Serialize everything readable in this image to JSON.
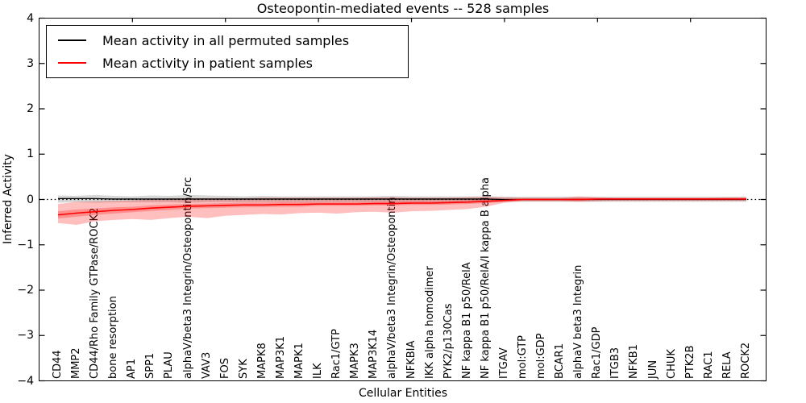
{
  "figure": {
    "background": "#ffffff",
    "frame_color": "#000000"
  },
  "chart_data": {
    "type": "line",
    "title": "Osteopontin-mediated events -- 528 samples",
    "xlabel": "Cellular Entities",
    "ylabel": "Inferred Activity",
    "ylim": [
      -4,
      4
    ],
    "grid": false,
    "zero_line": {
      "value": 0,
      "style": "dotted",
      "color": "#000000"
    },
    "yticks": {
      "values": [
        4,
        3,
        2,
        1,
        0,
        -1,
        -2,
        -3,
        -4
      ],
      "labels": [
        "4",
        "3",
        "2",
        "1",
        "0",
        "−1",
        "−2",
        "−3",
        "−4"
      ]
    },
    "categories": [
      "CD44",
      "MMP2",
      "CD44/Rho Family GTPase/ROCK2",
      "bone resorption",
      "AP1",
      "SPP1",
      "PLAU",
      "alphaV/beta3 Integrin/Osteopontin/Src",
      "VAV3",
      "FOS",
      "SYK",
      "MAPK8",
      "MAP3K1",
      "MAPK1",
      "ILK",
      "Rac1/GTP",
      "MAPK3",
      "MAP3K14",
      "alphaV/beta3 Integrin/Osteopontin",
      "NFKBIA",
      "IKK alpha homodimer",
      "PYK2/p130Cas",
      "NF kappa B1 p50/RelA",
      "NF kappa B1 p50/RelA/I kappa B alpha",
      "ITGAV",
      "mol:GTP",
      "mol:GDP",
      "BCAR1",
      "alphaV beta3 Integrin",
      "Rac1/GDP",
      "ITGB3",
      "NFKB1",
      "JUN",
      "CHUK",
      "PTK2B",
      "RAC1",
      "RELA",
      "ROCK2"
    ],
    "series": [
      {
        "name": "Mean activity in all permuted samples",
        "color": "#000000",
        "line_width": 1.3,
        "values": [
          0.02,
          0.02,
          0.02,
          0.01,
          0.01,
          0.01,
          0.01,
          0.01,
          0.01,
          0.01,
          0.01,
          0.01,
          0.01,
          0.01,
          0.01,
          0.01,
          0.01,
          0.01,
          0.01,
          0.01,
          0.01,
          0.01,
          0.01,
          0.01,
          0,
          0,
          0,
          0,
          0,
          0,
          0,
          0,
          0,
          0,
          0,
          0,
          0,
          0
        ],
        "band": {
          "fill": "rgba(0,0,0,0.16)",
          "upper": [
            0.09,
            0.08,
            0.1,
            0.08,
            0.07,
            0.09,
            0.08,
            0.1,
            0.09,
            0.08,
            0.07,
            0.08,
            0.07,
            0.07,
            0.07,
            0.07,
            0.07,
            0.07,
            0.08,
            0.07,
            0.07,
            0.07,
            0.07,
            0.07,
            0.06,
            0.06,
            0.06,
            0.06,
            0.06,
            0.06,
            0.06,
            0.06,
            0.06,
            0.06,
            0.06,
            0.06,
            0.06,
            0.06
          ],
          "lower": [
            -0.07,
            -0.06,
            -0.07,
            -0.06,
            -0.06,
            -0.06,
            -0.06,
            -0.07,
            -0.06,
            -0.06,
            -0.06,
            -0.06,
            -0.06,
            -0.06,
            -0.06,
            -0.06,
            -0.06,
            -0.06,
            -0.06,
            -0.06,
            -0.06,
            -0.06,
            -0.06,
            -0.06,
            -0.05,
            -0.05,
            -0.05,
            -0.05,
            -0.05,
            -0.05,
            -0.05,
            -0.05,
            -0.05,
            -0.05,
            -0.05,
            -0.05,
            -0.05,
            -0.05
          ]
        }
      },
      {
        "name": "Mean activity in patient samples",
        "color": "#ff0000",
        "line_width": 1.6,
        "values": [
          -0.34,
          -0.3,
          -0.27,
          -0.24,
          -0.22,
          -0.19,
          -0.17,
          -0.15,
          -0.14,
          -0.13,
          -0.12,
          -0.12,
          -0.11,
          -0.11,
          -0.1,
          -0.1,
          -0.1,
          -0.09,
          -0.09,
          -0.08,
          -0.08,
          -0.07,
          -0.06,
          -0.04,
          -0.02,
          0.0,
          0.0,
          0.0,
          0.0,
          0.01,
          0.01,
          0.01,
          0.01,
          0.01,
          0.01,
          0.01,
          0.01,
          0.01
        ],
        "band_outer": {
          "fill": "rgba(255,0,0,0.25)",
          "upper": [
            -0.1,
            -0.05,
            -0.04,
            -0.03,
            -0.02,
            0.0,
            0.02,
            0.03,
            0.03,
            0.03,
            0.03,
            0.04,
            0.04,
            0.04,
            0.04,
            0.04,
            0.04,
            0.05,
            0.05,
            0.04,
            0.04,
            0.04,
            0.05,
            0.06,
            0.05,
            0.04,
            0.04,
            0.04,
            0.07,
            0.05,
            0.04,
            0.04,
            0.04,
            0.04,
            0.04,
            0.04,
            0.05,
            0.05
          ],
          "lower": [
            -0.52,
            -0.56,
            -0.48,
            -0.45,
            -0.43,
            -0.45,
            -0.41,
            -0.38,
            -0.41,
            -0.36,
            -0.34,
            -0.32,
            -0.33,
            -0.3,
            -0.29,
            -0.31,
            -0.28,
            -0.27,
            -0.29,
            -0.26,
            -0.25,
            -0.23,
            -0.21,
            -0.16,
            -0.07,
            -0.04,
            -0.04,
            -0.04,
            -0.05,
            -0.04,
            -0.03,
            -0.03,
            -0.03,
            -0.03,
            -0.03,
            -0.03,
            -0.03,
            -0.03
          ]
        },
        "band_inner": {
          "fill": "rgba(255,0,0,0.25)",
          "upper": [
            -0.26,
            -0.22,
            -0.2,
            -0.17,
            -0.16,
            -0.13,
            -0.11,
            -0.1,
            -0.09,
            -0.08,
            -0.07,
            -0.07,
            -0.06,
            -0.06,
            -0.06,
            -0.06,
            -0.06,
            -0.05,
            -0.05,
            -0.04,
            -0.04,
            -0.03,
            -0.02,
            0.0,
            0.01,
            0.02,
            0.02,
            0.02,
            0.03,
            0.03,
            0.03,
            0.03,
            0.03,
            0.03,
            0.03,
            0.03,
            0.03,
            0.03
          ],
          "lower": [
            -0.42,
            -0.38,
            -0.34,
            -0.31,
            -0.28,
            -0.25,
            -0.23,
            -0.2,
            -0.19,
            -0.18,
            -0.17,
            -0.17,
            -0.16,
            -0.16,
            -0.14,
            -0.14,
            -0.14,
            -0.13,
            -0.13,
            -0.12,
            -0.12,
            -0.11,
            -0.1,
            -0.08,
            -0.05,
            -0.02,
            -0.02,
            -0.02,
            -0.03,
            -0.01,
            -0.01,
            -0.01,
            -0.01,
            -0.01,
            -0.01,
            -0.01,
            -0.01,
            -0.01
          ]
        }
      }
    ],
    "legend": {
      "position": "upper left",
      "entries": [
        {
          "label": "Mean activity in all permuted samples",
          "color": "#000000"
        },
        {
          "label": "Mean activity in patient samples",
          "color": "#ff0000"
        }
      ]
    },
    "layout": {
      "top_tick_category_indices": [
        4,
        9,
        14,
        19,
        24,
        29,
        34
      ]
    }
  }
}
